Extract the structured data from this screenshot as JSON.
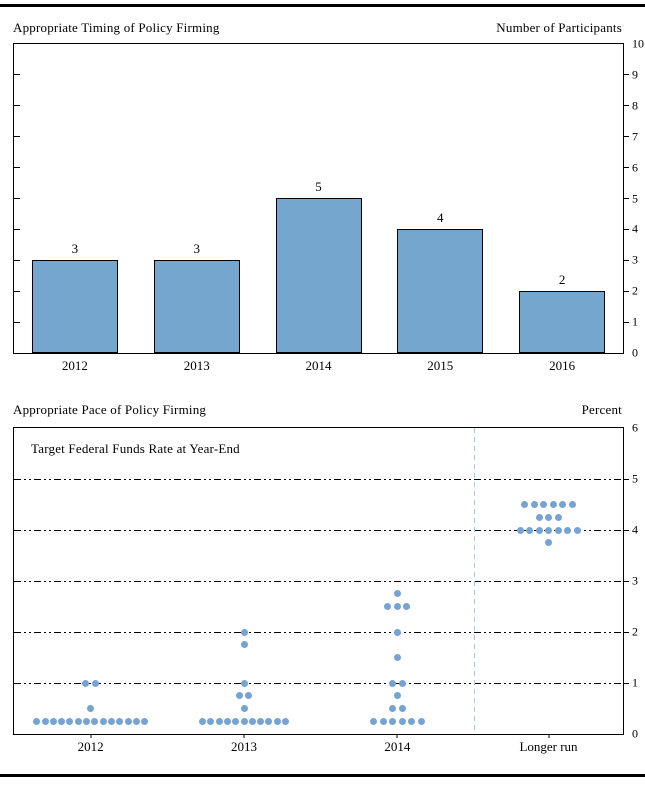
{
  "page": {
    "background": "#ffffff",
    "rule_color": "#000000"
  },
  "chart_data": [
    {
      "type": "bar",
      "title": "Appropriate Timing of Policy Firming",
      "unit_label": "Number of Participants",
      "categories": [
        "2012",
        "2013",
        "2014",
        "2015",
        "2016"
      ],
      "values": [
        3,
        3,
        5,
        4,
        2
      ],
      "ylim": [
        0,
        10
      ],
      "yticks": [
        0,
        1,
        2,
        3,
        4,
        5,
        6,
        7,
        8,
        9,
        10
      ],
      "value_labels_shown": true,
      "grid": false,
      "bar_color": "#74a6ce",
      "bar_border_color": "#000000",
      "axis_label_side": "right"
    },
    {
      "type": "scatter",
      "title": "Appropriate Pace of Policy Firming",
      "unit_label": "Percent",
      "inner_label": "Target Federal Funds Rate at Year-End",
      "categories": [
        "2012",
        "2013",
        "2014",
        "Longer run"
      ],
      "ylim": [
        0,
        6
      ],
      "yticks": [
        0,
        1,
        2,
        3,
        4,
        5,
        6
      ],
      "gridlines": [
        1,
        2,
        3,
        4,
        5
      ],
      "gridline_style": "dash-dot-dot",
      "divider_before_category": "Longer run",
      "divider_color": "#a6c5e2",
      "dot_color": "#75a4d2",
      "columns": [
        {
          "label": "2012",
          "dots": [
            {
              "y": 0.25,
              "n": 14
            },
            {
              "y": 0.5,
              "n": 1
            },
            {
              "y": 1.0,
              "n": 2
            }
          ]
        },
        {
          "label": "2013",
          "dots": [
            {
              "y": 0.25,
              "n": 11
            },
            {
              "y": 0.5,
              "n": 1
            },
            {
              "y": 0.75,
              "n": 2
            },
            {
              "y": 1.0,
              "n": 1
            },
            {
              "y": 1.75,
              "n": 1
            },
            {
              "y": 2.0,
              "n": 1
            }
          ]
        },
        {
          "label": "2014",
          "dots": [
            {
              "y": 0.25,
              "n": 6
            },
            {
              "y": 0.5,
              "n": 2
            },
            {
              "y": 0.75,
              "n": 1
            },
            {
              "y": 1.0,
              "n": 2
            },
            {
              "y": 1.5,
              "n": 1
            },
            {
              "y": 2.0,
              "n": 1
            },
            {
              "y": 2.5,
              "n": 3
            },
            {
              "y": 2.75,
              "n": 1
            }
          ]
        },
        {
          "label": "Longer run",
          "dots": [
            {
              "y": 3.75,
              "n": 1
            },
            {
              "y": 4.0,
              "n": 7
            },
            {
              "y": 4.25,
              "n": 3
            },
            {
              "y": 4.5,
              "n": 6
            }
          ]
        }
      ]
    }
  ]
}
